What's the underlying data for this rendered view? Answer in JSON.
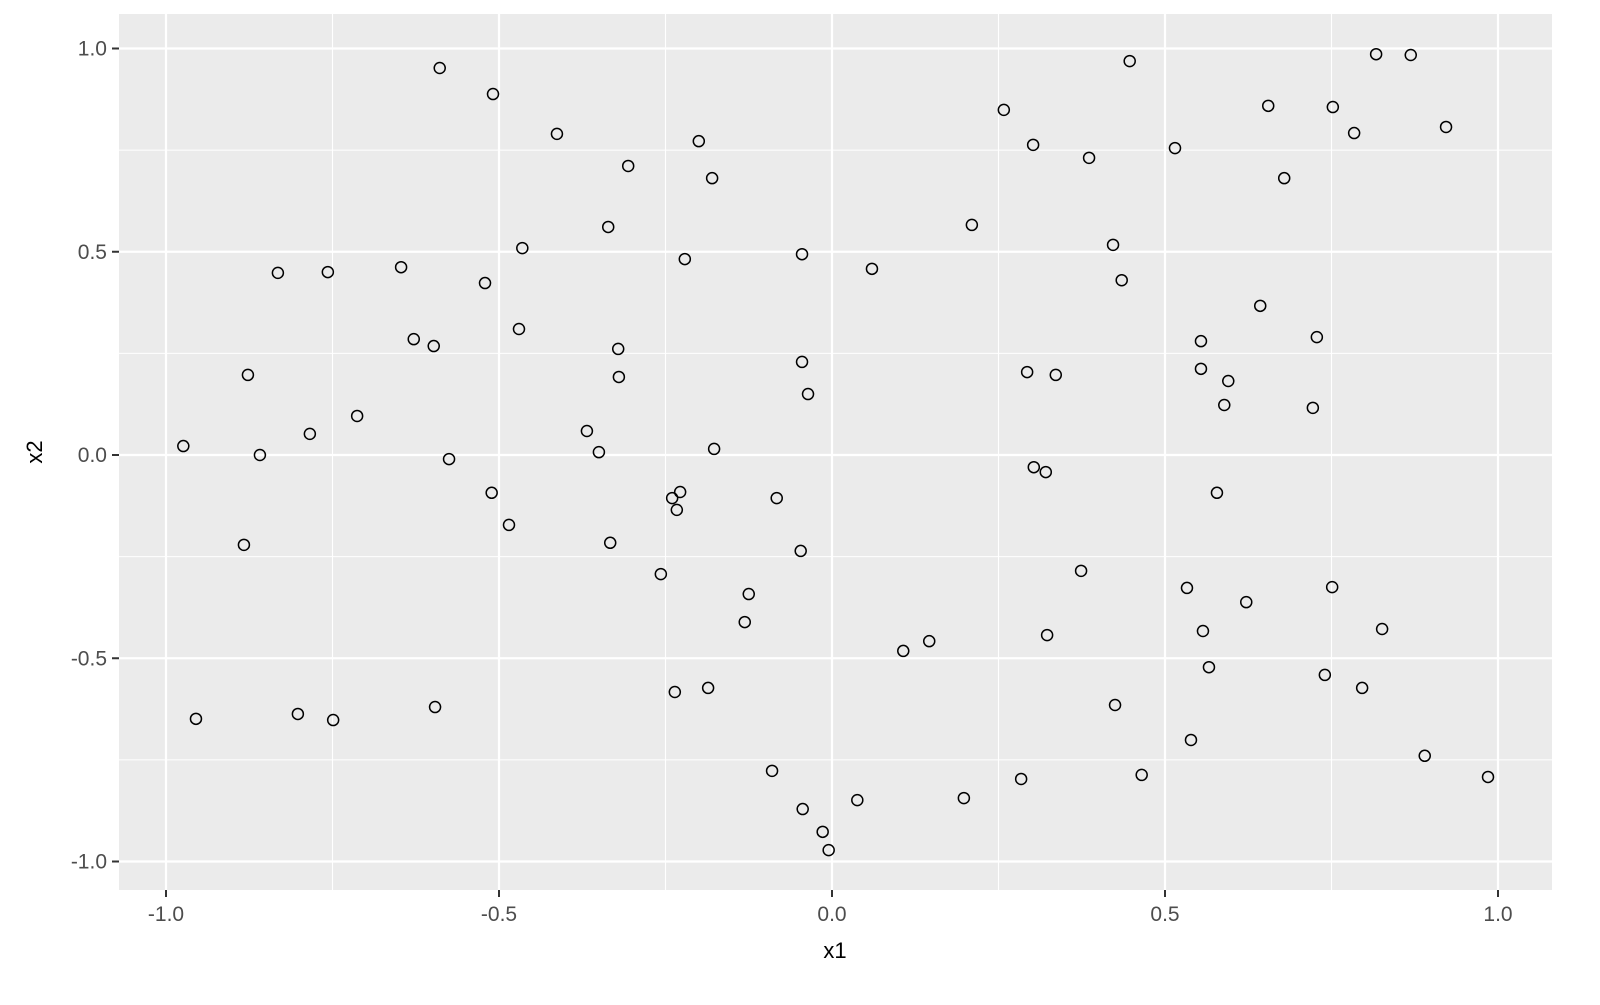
{
  "chart_data": {
    "type": "scatter",
    "title": "",
    "xlabel": "x1",
    "ylabel": "x2",
    "xlim": [
      -1.07,
      1.08
    ],
    "ylim": [
      -1.07,
      1.08
    ],
    "xticks": [
      -1.0,
      -0.5,
      0.0,
      0.5,
      1.0
    ],
    "yticks": [
      -1.0,
      -0.5,
      0.0,
      0.5,
      1.0
    ],
    "xtick_labels": [
      "-1.0",
      "-0.5",
      "0.0",
      "0.5",
      "1.0"
    ],
    "ytick_labels": [
      "-1.0",
      "-0.5",
      "0.0",
      "0.5",
      "1.0"
    ],
    "grid": true,
    "colors": {
      "panel": "#ebebeb",
      "grid": "#ffffff",
      "point_stroke": "#000000",
      "text": "#4d4d4d"
    },
    "points": [
      [
        -0.589,
        0.952
      ],
      [
        -0.509,
        0.888
      ],
      [
        -0.413,
        0.79
      ],
      [
        -0.306,
        0.711
      ],
      [
        -0.2,
        0.772
      ],
      [
        -0.18,
        0.681
      ],
      [
        -0.336,
        0.561
      ],
      [
        -0.465,
        0.509
      ],
      [
        -0.221,
        0.482
      ],
      [
        -0.045,
        0.494
      ],
      [
        0.06,
        0.458
      ],
      [
        -0.832,
        0.448
      ],
      [
        -0.757,
        0.45
      ],
      [
        -0.647,
        0.462
      ],
      [
        -0.521,
        0.423
      ],
      [
        -0.47,
        0.31
      ],
      [
        -0.628,
        0.285
      ],
      [
        -0.598,
        0.268
      ],
      [
        -0.321,
        0.261
      ],
      [
        -0.32,
        0.192
      ],
      [
        -0.877,
        0.197
      ],
      [
        -0.045,
        0.229
      ],
      [
        -0.036,
        0.15
      ],
      [
        -0.713,
        0.096
      ],
      [
        -0.368,
        0.059
      ],
      [
        -0.784,
        0.052
      ],
      [
        -0.974,
        0.022
      ],
      [
        -0.859,
        0.0
      ],
      [
        -0.575,
        -0.01
      ],
      [
        -0.35,
        0.007
      ],
      [
        -0.177,
        0.015
      ],
      [
        -0.511,
        -0.093
      ],
      [
        -0.485,
        -0.172
      ],
      [
        -0.24,
        -0.106
      ],
      [
        -0.228,
        -0.091
      ],
      [
        -0.233,
        -0.135
      ],
      [
        -0.083,
        -0.106
      ],
      [
        -0.883,
        -0.221
      ],
      [
        -0.333,
        -0.216
      ],
      [
        -0.047,
        -0.236
      ],
      [
        -0.257,
        -0.293
      ],
      [
        -0.125,
        -0.342
      ],
      [
        -0.131,
        -0.411
      ],
      [
        -0.955,
        -0.649
      ],
      [
        -0.802,
        -0.637
      ],
      [
        -0.749,
        -0.652
      ],
      [
        -0.596,
        -0.62
      ],
      [
        -0.236,
        -0.583
      ],
      [
        -0.186,
        -0.573
      ],
      [
        -0.09,
        -0.777
      ],
      [
        -0.044,
        -0.871
      ],
      [
        -0.014,
        -0.927
      ],
      [
        -0.005,
        -0.972
      ],
      [
        0.038,
        -0.849
      ],
      [
        0.107,
        -0.482
      ],
      [
        0.146,
        -0.458
      ],
      [
        0.198,
        -0.844
      ],
      [
        0.21,
        0.566
      ],
      [
        0.258,
        0.849
      ],
      [
        0.302,
        0.763
      ],
      [
        0.386,
        0.731
      ],
      [
        0.447,
        0.969
      ],
      [
        0.422,
        0.517
      ],
      [
        0.435,
        0.43
      ],
      [
        0.515,
        0.755
      ],
      [
        0.293,
        0.204
      ],
      [
        0.336,
        0.197
      ],
      [
        0.303,
        -0.03
      ],
      [
        0.321,
        -0.042
      ],
      [
        0.374,
        -0.285
      ],
      [
        0.323,
        -0.443
      ],
      [
        0.284,
        -0.797
      ],
      [
        0.425,
        -0.615
      ],
      [
        0.465,
        -0.787
      ],
      [
        0.539,
        -0.701
      ],
      [
        0.533,
        -0.327
      ],
      [
        0.557,
        -0.433
      ],
      [
        0.566,
        -0.522
      ],
      [
        0.578,
        -0.093
      ],
      [
        0.622,
        -0.362
      ],
      [
        0.554,
        0.28
      ],
      [
        0.554,
        0.212
      ],
      [
        0.595,
        0.182
      ],
      [
        0.589,
        0.123
      ],
      [
        0.643,
        0.367
      ],
      [
        0.655,
        0.859
      ],
      [
        0.679,
        0.681
      ],
      [
        0.752,
        0.856
      ],
      [
        0.784,
        0.792
      ],
      [
        0.817,
        0.986
      ],
      [
        0.869,
        0.984
      ],
      [
        0.922,
        0.807
      ],
      [
        0.728,
        0.29
      ],
      [
        0.722,
        0.116
      ],
      [
        0.751,
        -0.325
      ],
      [
        0.826,
        -0.428
      ],
      [
        0.74,
        -0.541
      ],
      [
        0.796,
        -0.573
      ],
      [
        0.89,
        -0.74
      ],
      [
        0.985,
        -0.792
      ]
    ]
  }
}
